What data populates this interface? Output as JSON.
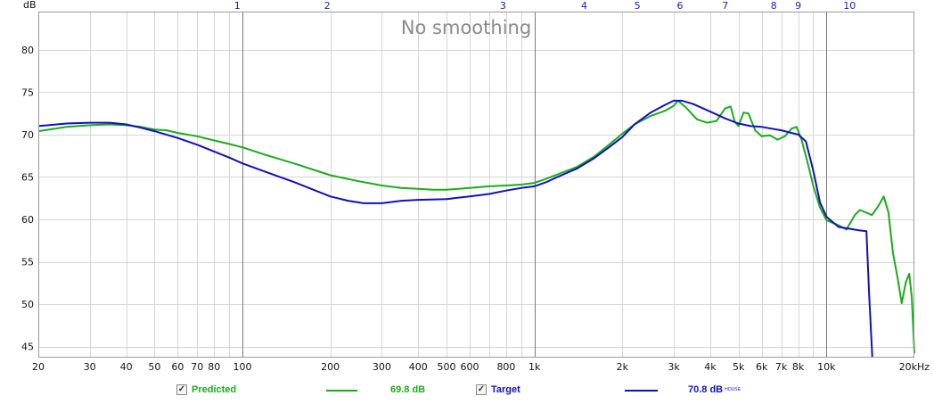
{
  "chart_data": {
    "type": "line",
    "title": "No smoothing",
    "ylabel": "dB",
    "xscale": "log",
    "xlim": [
      20,
      20000
    ],
    "ylim": [
      43.7,
      84.5
    ],
    "x_ticks": [
      {
        "v": 20,
        "label": "20"
      },
      {
        "v": 30,
        "label": "30"
      },
      {
        "v": 40,
        "label": "40"
      },
      {
        "v": 50,
        "label": "50"
      },
      {
        "v": 60,
        "label": "60"
      },
      {
        "v": 70,
        "label": "70"
      },
      {
        "v": 80,
        "label": "80"
      },
      {
        "v": 100,
        "label": "100"
      },
      {
        "v": 200,
        "label": "200"
      },
      {
        "v": 300,
        "label": "300"
      },
      {
        "v": 400,
        "label": "400"
      },
      {
        "v": 500,
        "label": "500"
      },
      {
        "v": 600,
        "label": "600"
      },
      {
        "v": 800,
        "label": "800"
      },
      {
        "v": 1000,
        "label": "1k"
      },
      {
        "v": 2000,
        "label": "2k"
      },
      {
        "v": 3000,
        "label": "3k"
      },
      {
        "v": 4000,
        "label": "4k"
      },
      {
        "v": 5000,
        "label": "5k"
      },
      {
        "v": 6000,
        "label": "6k"
      },
      {
        "v": 7000,
        "label": "7k"
      },
      {
        "v": 8000,
        "label": "8k"
      },
      {
        "v": 10000,
        "label": "10k"
      },
      {
        "v": 20000,
        "label": "20kHz"
      }
    ],
    "x_major": [
      100,
      1000,
      10000
    ],
    "x_minor": [
      30,
      40,
      50,
      60,
      70,
      80,
      90,
      200,
      300,
      400,
      500,
      600,
      700,
      800,
      900,
      2000,
      3000,
      4000,
      5000,
      6000,
      7000,
      8000,
      9000
    ],
    "y_ticks": [
      45,
      50,
      55,
      60,
      65,
      70,
      75,
      80
    ],
    "band_ticks": [
      {
        "v": 96,
        "label": "1"
      },
      {
        "v": 195,
        "label": "2"
      },
      {
        "v": 780,
        "label": "3"
      },
      {
        "v": 1480,
        "label": "4"
      },
      {
        "v": 2250,
        "label": "5"
      },
      {
        "v": 3150,
        "label": "6"
      },
      {
        "v": 4500,
        "label": "7"
      },
      {
        "v": 6600,
        "label": "8"
      },
      {
        "v": 8000,
        "label": "9"
      },
      {
        "v": 12000,
        "label": "10"
      }
    ],
    "series": [
      {
        "name": "Predicted",
        "color": "#1aac1a",
        "points": [
          [
            20,
            70.4
          ],
          [
            25,
            70.9
          ],
          [
            30,
            71.1
          ],
          [
            35,
            71.2
          ],
          [
            40,
            71.1
          ],
          [
            45,
            70.9
          ],
          [
            50,
            70.6
          ],
          [
            55,
            70.5
          ],
          [
            60,
            70.2
          ],
          [
            70,
            69.8
          ],
          [
            80,
            69.3
          ],
          [
            90,
            68.9
          ],
          [
            100,
            68.5
          ],
          [
            120,
            67.6
          ],
          [
            150,
            66.6
          ],
          [
            200,
            65.2
          ],
          [
            250,
            64.5
          ],
          [
            300,
            64.0
          ],
          [
            350,
            63.7
          ],
          [
            400,
            63.6
          ],
          [
            450,
            63.5
          ],
          [
            500,
            63.5
          ],
          [
            600,
            63.7
          ],
          [
            700,
            63.9
          ],
          [
            800,
            64.0
          ],
          [
            900,
            64.1
          ],
          [
            1000,
            64.3
          ],
          [
            1100,
            64.8
          ],
          [
            1200,
            65.3
          ],
          [
            1400,
            66.2
          ],
          [
            1600,
            67.4
          ],
          [
            1800,
            68.8
          ],
          [
            2000,
            70.1
          ],
          [
            2200,
            71.2
          ],
          [
            2500,
            72.2
          ],
          [
            2800,
            72.8
          ],
          [
            3000,
            73.4
          ],
          [
            3100,
            74.0
          ],
          [
            3300,
            73.2
          ],
          [
            3600,
            71.8
          ],
          [
            3900,
            71.4
          ],
          [
            4200,
            71.6
          ],
          [
            4500,
            73.1
          ],
          [
            4700,
            73.3
          ],
          [
            4850,
            71.5
          ],
          [
            5000,
            71.0
          ],
          [
            5200,
            72.6
          ],
          [
            5400,
            72.5
          ],
          [
            5700,
            70.5
          ],
          [
            6000,
            69.8
          ],
          [
            6400,
            69.9
          ],
          [
            6800,
            69.4
          ],
          [
            7200,
            69.8
          ],
          [
            7600,
            70.7
          ],
          [
            7900,
            70.9
          ],
          [
            8200,
            69.5
          ],
          [
            8600,
            66.8
          ],
          [
            9000,
            64.0
          ],
          [
            9500,
            61.4
          ],
          [
            10000,
            59.9
          ],
          [
            11000,
            59.3
          ],
          [
            11700,
            58.8
          ],
          [
            12500,
            60.5
          ],
          [
            13000,
            61.1
          ],
          [
            13700,
            60.8
          ],
          [
            14300,
            60.5
          ],
          [
            15000,
            61.5
          ],
          [
            15700,
            62.7
          ],
          [
            16300,
            60.8
          ],
          [
            16900,
            56.0
          ],
          [
            17500,
            53.2
          ],
          [
            18100,
            50.1
          ],
          [
            18700,
            52.6
          ],
          [
            19200,
            53.6
          ],
          [
            19600,
            50.8
          ],
          [
            20000,
            44.2
          ]
        ]
      },
      {
        "name": "Target",
        "color": "#1010c0",
        "points": [
          [
            20,
            71.0
          ],
          [
            25,
            71.3
          ],
          [
            30,
            71.4
          ],
          [
            35,
            71.4
          ],
          [
            40,
            71.2
          ],
          [
            45,
            70.8
          ],
          [
            50,
            70.4
          ],
          [
            60,
            69.6
          ],
          [
            70,
            68.8
          ],
          [
            80,
            68.0
          ],
          [
            90,
            67.3
          ],
          [
            100,
            66.6
          ],
          [
            120,
            65.6
          ],
          [
            150,
            64.4
          ],
          [
            200,
            62.7
          ],
          [
            230,
            62.2
          ],
          [
            260,
            61.9
          ],
          [
            300,
            61.9
          ],
          [
            350,
            62.2
          ],
          [
            400,
            62.3
          ],
          [
            500,
            62.4
          ],
          [
            600,
            62.7
          ],
          [
            700,
            63.0
          ],
          [
            800,
            63.4
          ],
          [
            900,
            63.7
          ],
          [
            1000,
            63.9
          ],
          [
            1100,
            64.4
          ],
          [
            1200,
            65.0
          ],
          [
            1400,
            66.0
          ],
          [
            1600,
            67.2
          ],
          [
            1800,
            68.5
          ],
          [
            2000,
            69.7
          ],
          [
            2200,
            71.2
          ],
          [
            2500,
            72.6
          ],
          [
            2800,
            73.5
          ],
          [
            3000,
            74.0
          ],
          [
            3200,
            74.0
          ],
          [
            3500,
            73.6
          ],
          [
            4000,
            72.7
          ],
          [
            4500,
            71.9
          ],
          [
            5000,
            71.3
          ],
          [
            5500,
            71.0
          ],
          [
            6000,
            70.9
          ],
          [
            7000,
            70.5
          ],
          [
            8000,
            70.0
          ],
          [
            8500,
            69.2
          ],
          [
            9000,
            65.8
          ],
          [
            9500,
            62.0
          ],
          [
            10000,
            60.3
          ],
          [
            11000,
            59.1
          ],
          [
            12000,
            58.9
          ],
          [
            13000,
            58.7
          ],
          [
            13700,
            58.6
          ],
          [
            14000,
            51.2
          ],
          [
            14350,
            43.7
          ]
        ]
      }
    ]
  },
  "legend": {
    "predicted_label": "Predicted",
    "predicted_value": "69.8 dB",
    "predicted_color": "#1aac1a",
    "target_label": "Target",
    "target_value": "70.8 dB",
    "target_value_sup": "HOUSE",
    "target_color": "#1010c0",
    "check_mark": "✓"
  }
}
